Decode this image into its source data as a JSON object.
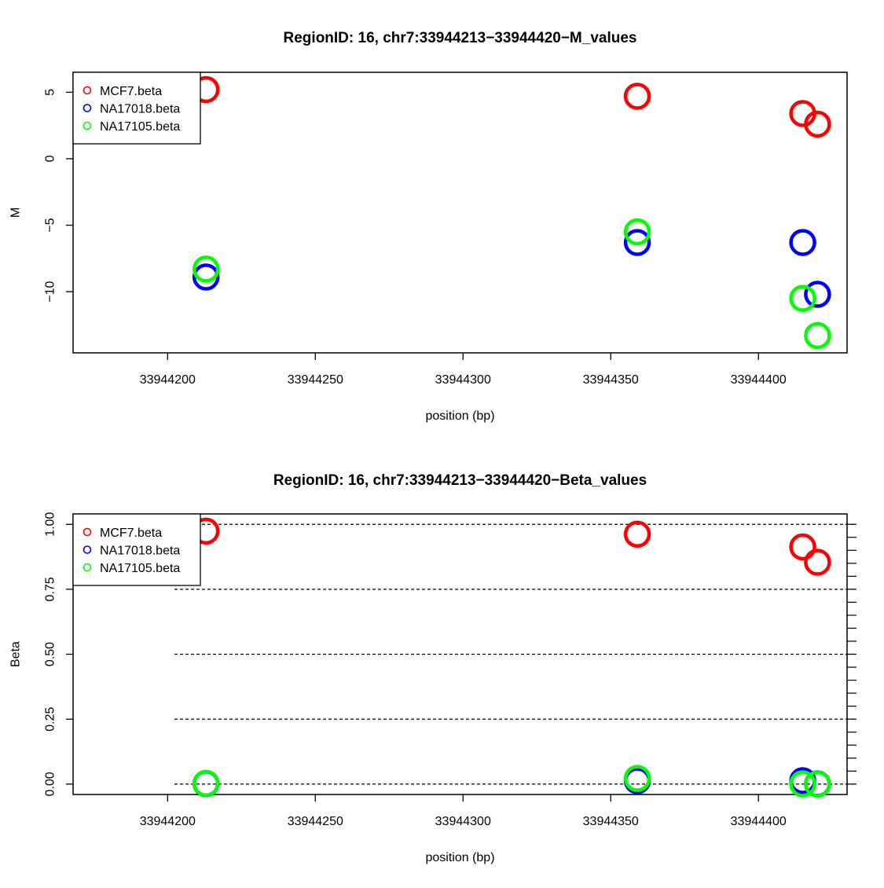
{
  "chart_data": [
    {
      "type": "scatter",
      "title": "RegionID: 16, chr7:33944213−33944420−M_values",
      "xlabel": "position (bp)",
      "ylabel": "M",
      "xlim": [
        33944168,
        33944430
      ],
      "ylim": [
        -14.6,
        6.5
      ],
      "xticks": [
        "33944200",
        "33944250",
        "33944300",
        "33944350",
        "33944400"
      ],
      "xtick_values": [
        33944200,
        33944250,
        33944300,
        33944350,
        33944400
      ],
      "yticks": [
        "5",
        "0",
        "−5",
        "−10"
      ],
      "ytick_values": [
        5,
        0,
        -5,
        -10
      ],
      "legend_position": "top-left",
      "series": [
        {
          "name": "MCF7.beta",
          "color": "#ff0000",
          "x": [
            33944213,
            33944359,
            33944415,
            33944420
          ],
          "y": [
            5.2,
            4.7,
            3.4,
            2.6
          ]
        },
        {
          "name": "NA17018.beta",
          "color": "#0000ff",
          "x": [
            33944213,
            33944359,
            33944415,
            33944420
          ],
          "y": [
            -8.9,
            -6.3,
            -6.3,
            -10.2
          ]
        },
        {
          "name": "NA17105.beta",
          "color": "#00ff00",
          "x": [
            33944213,
            33944359,
            33944415,
            33944420
          ],
          "y": [
            -8.3,
            -5.5,
            -10.5,
            -13.3
          ]
        }
      ]
    },
    {
      "type": "scatter",
      "title": "RegionID: 16, chr7:33944213−33944420−Beta_values",
      "xlabel": "position (bp)",
      "ylabel": "Beta",
      "xlim": [
        33944168,
        33944430
      ],
      "ylim": [
        -0.04,
        1.04
      ],
      "xticks": [
        "33944200",
        "33944250",
        "33944300",
        "33944350",
        "33944400"
      ],
      "xtick_values": [
        33944200,
        33944250,
        33944300,
        33944350,
        33944400
      ],
      "yticks": [
        "0.00",
        "0.25",
        "0.50",
        "0.75",
        "1.00"
      ],
      "ytick_values": [
        0,
        0.25,
        0.5,
        0.75,
        1.0
      ],
      "reference_lines": [
        0,
        0.25,
        0.5,
        0.75,
        1.0
      ],
      "legend_position": "top-left",
      "series": [
        {
          "name": "MCF7.beta",
          "color": "#ff0000",
          "x": [
            33944213,
            33944359,
            33944415,
            33944420
          ],
          "y": [
            0.974,
            0.962,
            0.913,
            0.854
          ]
        },
        {
          "name": "NA17018.beta",
          "color": "#0000ff",
          "x": [
            33944213,
            33944359,
            33944415,
            33944420
          ],
          "y": [
            0.002,
            0.013,
            0.013,
            0.001
          ]
        },
        {
          "name": "NA17105.beta",
          "color": "#00ff00",
          "x": [
            33944213,
            33944359,
            33944415,
            33944420
          ],
          "y": [
            0.003,
            0.022,
            0.001,
            0.0001
          ]
        }
      ]
    }
  ]
}
